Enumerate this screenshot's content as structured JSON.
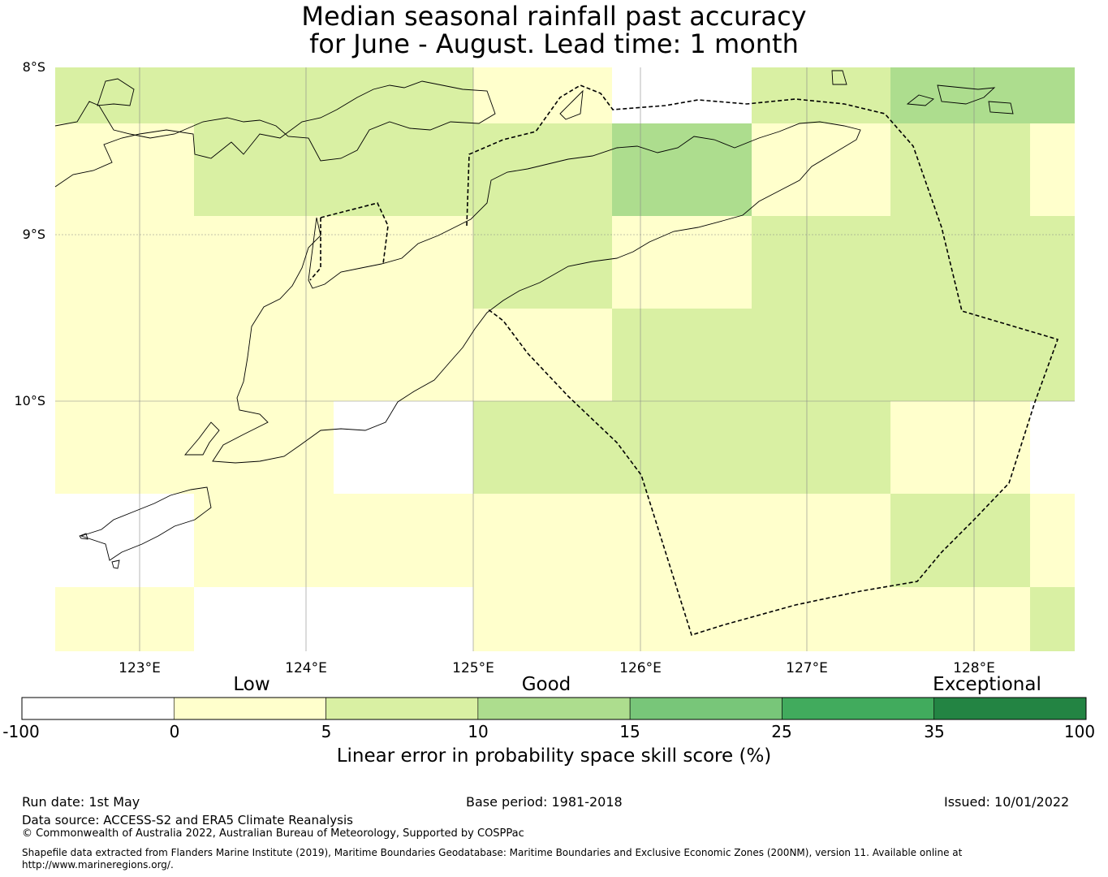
{
  "title": {
    "line1": "Median seasonal rainfall past accuracy",
    "line2": "for June - August. Lead time: 1 month"
  },
  "map": {
    "lat_labels": [
      "8°S",
      "9°S",
      "10°S"
    ],
    "lon_labels": [
      "123°E",
      "124°E",
      "125°E",
      "126°E",
      "127°E",
      "128°E"
    ],
    "colors": {
      "below_0": "#ffffff",
      "0_5": "#ffffcc",
      "5_10": "#d9f0a3",
      "10_15": "#addd8e",
      "15_25": "#78c679",
      "25_35": "#41ab5d",
      "35_100": "#238443"
    }
  },
  "colorbar": {
    "categories": [
      "Low",
      "Good",
      "Exceptional"
    ],
    "ticks": [
      "-100",
      "0",
      "5",
      "10",
      "15",
      "25",
      "35",
      "100"
    ],
    "label": "Linear error in probability space skill score (%)"
  },
  "footer": {
    "run_date": "Run date: 1st May",
    "base_period": "Base period: 1981-2018",
    "issued": "Issued: 10/01/2022",
    "data_source": "Data source: ACCESS-S2 and ERA5 Climate Reanalysis",
    "copyright": "© Commonwealth of Australia 2022, Australian Bureau of Meteorology, Supported by COSPPac",
    "shapefile_line1": "Shapefile data extracted from Flanders Marine Institute (2019), Maritime Boundaries Geodatabase: Maritime Boundaries and Exclusive Economic Zones (200NM), version 11. Available online at",
    "shapefile_line2": "http://www.marineregions.org/."
  }
}
